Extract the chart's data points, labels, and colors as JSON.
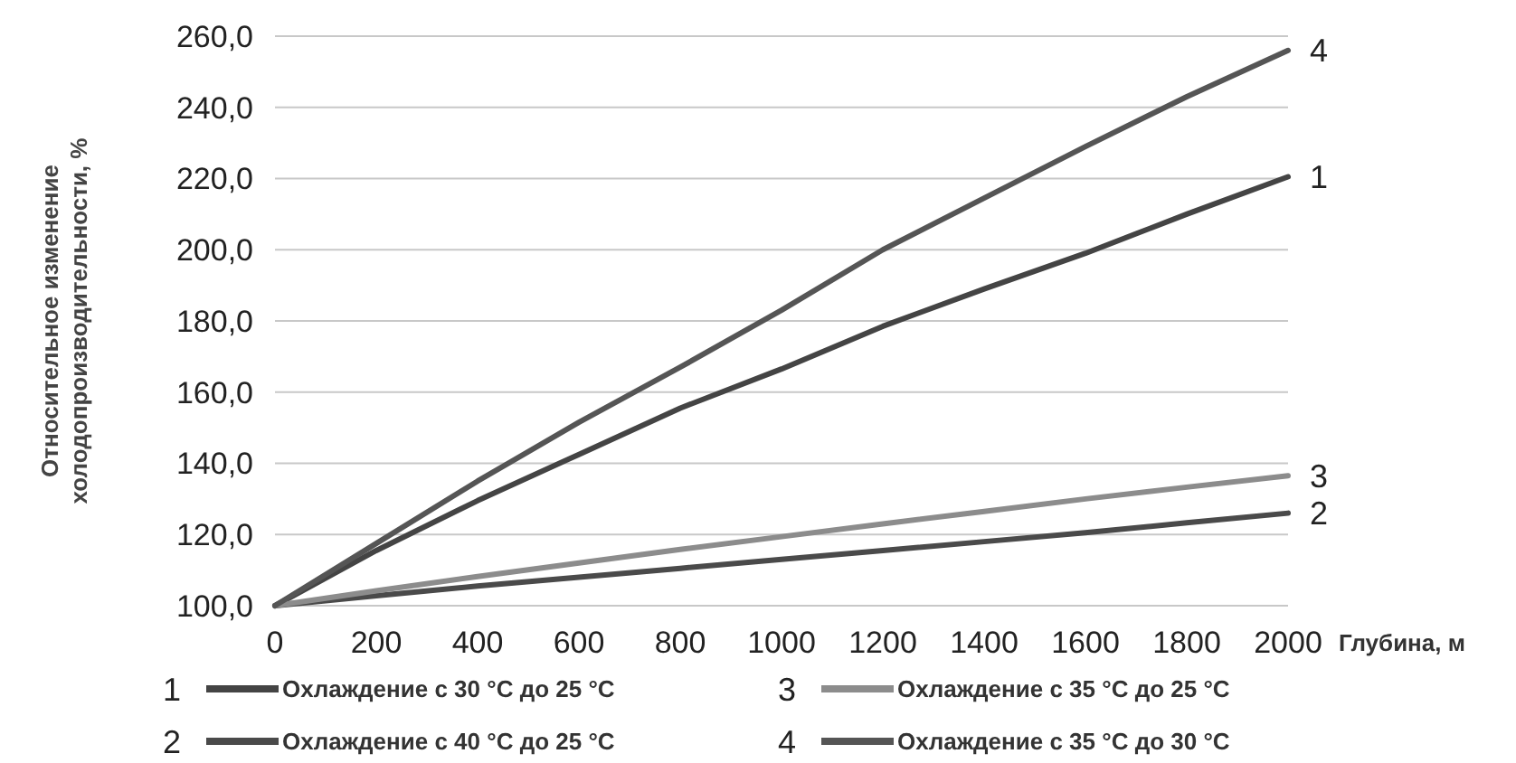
{
  "chart_data": {
    "type": "line",
    "ylabel": "Относительное изменение\nхолодопроизводительности, %",
    "xlabel": "Глубина, м",
    "x": [
      0,
      200,
      400,
      600,
      800,
      1000,
      1200,
      1400,
      1600,
      1800,
      2000
    ],
    "xlim": [
      0,
      2000
    ],
    "xticks": [
      0,
      200,
      400,
      600,
      800,
      1000,
      1200,
      1400,
      1600,
      1800,
      2000
    ],
    "ylim": [
      100,
      260
    ],
    "yticks": [
      {
        "value": 100,
        "label": "100,0"
      },
      {
        "value": 120,
        "label": "120,0"
      },
      {
        "value": 140,
        "label": "140,0"
      },
      {
        "value": 160,
        "label": "160,0"
      },
      {
        "value": 180,
        "label": "180,0"
      },
      {
        "value": 200,
        "label": "200,0"
      },
      {
        "value": 220,
        "label": "220,0"
      },
      {
        "value": 240,
        "label": "240,0"
      },
      {
        "value": 260,
        "label": "260,0"
      }
    ],
    "grid": "y",
    "legend": "bottom",
    "marker": "none",
    "line_style": "solid",
    "series": [
      {
        "name": "Охлаждение с 30 °C до 25 °C",
        "color": "#444444",
        "values": [
          100,
          115.5,
          129.5,
          142.5,
          155.5,
          166.5,
          178.5,
          189,
          199,
          210,
          220.5
        ]
      },
      {
        "name": "Охлаждение с 40 °C до 25 °C",
        "color": "#4a4a4a",
        "values": [
          100,
          102.8,
          105.5,
          108,
          110.5,
          113,
          115.5,
          118,
          120.5,
          123.3,
          126
        ]
      },
      {
        "name": "Охлаждение с 35 °C до 25 °C",
        "color": "#8c8c8c",
        "values": [
          100,
          104.2,
          108.2,
          112,
          115.8,
          119.4,
          123,
          126.5,
          130,
          133.3,
          136.5
        ]
      },
      {
        "name": "Охлаждение с 35 °C до 30 °C",
        "color": "#555555",
        "values": [
          100,
          117.5,
          135,
          151.5,
          167,
          183,
          200,
          214.5,
          229,
          243,
          256
        ]
      }
    ],
    "annotations": [
      "1",
      "2",
      "3",
      "4"
    ]
  }
}
